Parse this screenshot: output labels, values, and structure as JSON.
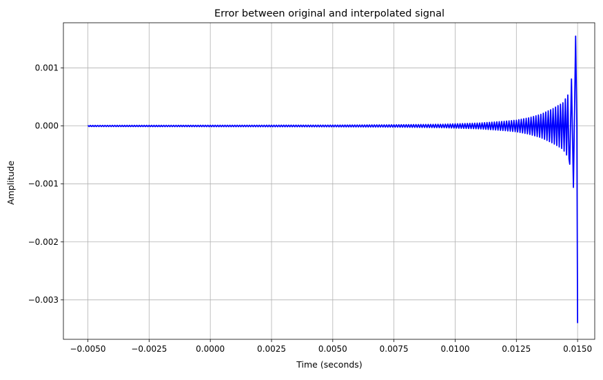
{
  "chart_data": {
    "type": "line",
    "title": "Error between original and interpolated signal",
    "xlabel": "Time (seconds)",
    "ylabel": "Amplitude",
    "xlim": [
      -0.006,
      0.0157
    ],
    "ylim": [
      -0.00368,
      0.00178
    ],
    "grid": true,
    "line_color": "#0000ff",
    "xticks": [
      {
        "value": -0.005,
        "label": "−0.0050"
      },
      {
        "value": -0.0025,
        "label": "−0.0025"
      },
      {
        "value": 0.0,
        "label": "0.0000"
      },
      {
        "value": 0.0025,
        "label": "0.0025"
      },
      {
        "value": 0.005,
        "label": "0.0050"
      },
      {
        "value": 0.0075,
        "label": "0.0075"
      },
      {
        "value": 0.01,
        "label": "0.0100"
      },
      {
        "value": 0.0125,
        "label": "0.0125"
      },
      {
        "value": 0.015,
        "label": "0.0150"
      }
    ],
    "yticks": [
      {
        "value": 0.001,
        "label": "0.001"
      },
      {
        "value": 0.0,
        "label": "0.000"
      },
      {
        "value": -0.001,
        "label": "−0.001"
      },
      {
        "value": -0.002,
        "label": "−0.002"
      },
      {
        "value": -0.003,
        "label": "−0.003"
      }
    ],
    "series": [
      {
        "signal_start": -0.005,
        "signal_end": 0.015,
        "oscillation_period": 0.0001,
        "envelope": [
          [
            -0.005,
            1e-05
          ],
          [
            0.0,
            1.2e-05
          ],
          [
            0.005,
            1.5e-05
          ],
          [
            0.0075,
            2e-05
          ],
          [
            0.0095,
            3e-05
          ],
          [
            0.011,
            5e-05
          ],
          [
            0.012,
            8e-05
          ],
          [
            0.0125,
            0.0001
          ],
          [
            0.013,
            0.00014
          ],
          [
            0.0135,
            0.0002
          ],
          [
            0.014,
            0.0003
          ],
          [
            0.0144,
            0.0004
          ],
          [
            0.0147,
            0.0006
          ],
          [
            0.01485,
            0.0009
          ],
          [
            0.0149,
            0.00115
          ],
          [
            0.01492,
            0.0015
          ],
          [
            0.015,
            0.0015
          ]
        ],
        "peaks": [
          {
            "x": 0.01492,
            "y": 0.00155
          },
          {
            "x": 0.01483,
            "y": -0.00106
          },
          {
            "x": 0.01475,
            "y": 0.00081
          },
          {
            "x": 0.01468,
            "y": -0.00066
          },
          {
            "x": 0.015,
            "y": -0.0034
          }
        ]
      }
    ]
  }
}
